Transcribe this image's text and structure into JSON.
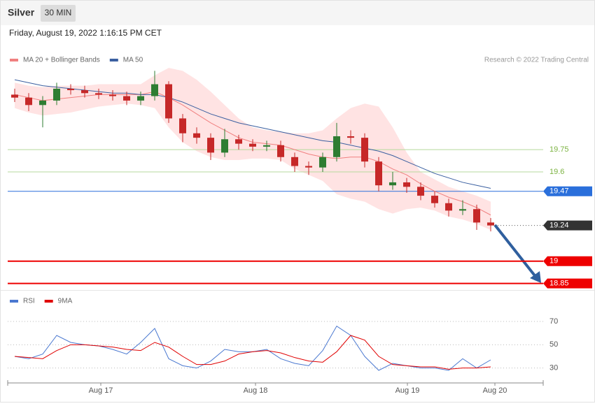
{
  "header": {
    "symbol": "Silver",
    "interval": "30 MIN",
    "datetime": "Friday, August 19, 2022 1:16:15 PM CET",
    "credit": "Research © 2022 Trading Central"
  },
  "chart_data": [
    {
      "type": "candlestick",
      "xlim": [
        0,
        153
      ],
      "ylim": [
        18.82,
        20.31
      ],
      "x": [
        2,
        6,
        10,
        14,
        18,
        22,
        26,
        30,
        34,
        38,
        42,
        46,
        50,
        54,
        58,
        62,
        66,
        70,
        74,
        78,
        82,
        86,
        90,
        94,
        98,
        102,
        106,
        110,
        114,
        118,
        122,
        126,
        130,
        134,
        138
      ],
      "open": [
        20.12,
        20.1,
        20.05,
        20.08,
        20.16,
        20.15,
        20.13,
        20.12,
        20.11,
        20.08,
        20.11,
        20.19,
        19.96,
        19.86,
        19.83,
        19.73,
        19.82,
        19.79,
        19.77,
        19.78,
        19.7,
        19.64,
        19.63,
        19.7,
        19.84,
        19.83,
        19.67,
        19.51,
        19.53,
        19.5,
        19.44,
        19.39,
        19.34,
        19.35,
        19.26
      ],
      "high": [
        20.16,
        20.13,
        20.11,
        20.2,
        20.19,
        20.18,
        20.16,
        20.15,
        20.14,
        20.14,
        20.28,
        20.21,
        19.99,
        19.9,
        19.86,
        19.89,
        19.85,
        19.82,
        19.81,
        19.81,
        19.73,
        19.67,
        19.73,
        19.93,
        19.88,
        19.86,
        19.7,
        19.6,
        19.56,
        19.53,
        19.47,
        19.42,
        19.41,
        19.38,
        19.29
      ],
      "low": [
        20.07,
        20.01,
        19.9,
        20.05,
        20.12,
        20.1,
        20.09,
        20.08,
        20.05,
        20.05,
        20.08,
        19.93,
        19.8,
        19.79,
        19.68,
        19.7,
        19.75,
        19.74,
        19.74,
        19.67,
        19.6,
        19.58,
        19.6,
        19.67,
        19.79,
        19.63,
        19.47,
        19.48,
        19.46,
        19.41,
        19.36,
        19.3,
        19.31,
        19.21,
        19.2
      ],
      "close": [
        20.1,
        20.05,
        20.08,
        20.16,
        20.15,
        20.13,
        20.12,
        20.11,
        20.08,
        20.11,
        20.19,
        19.96,
        19.86,
        19.83,
        19.73,
        19.82,
        19.79,
        19.77,
        19.78,
        19.7,
        19.64,
        19.63,
        19.7,
        19.84,
        19.83,
        19.67,
        19.51,
        19.53,
        19.5,
        19.44,
        19.39,
        19.34,
        19.35,
        19.26,
        19.24
      ],
      "up_color": "#2e7d32",
      "down_color": "#c62828",
      "series": [
        {
          "name": "MA 20 + Bollinger Bands",
          "color": "#f08080",
          "band_color": "#ffe3e3",
          "values": [
            20.12,
            20.1,
            20.08,
            20.09,
            20.1,
            20.11,
            20.12,
            20.12,
            20.12,
            20.12,
            20.14,
            20.1,
            20.05,
            19.99,
            19.93,
            19.88,
            19.83,
            19.8,
            19.79,
            19.78,
            19.75,
            19.72,
            19.7,
            19.69,
            19.7,
            19.7,
            19.67,
            19.62,
            19.58,
            19.52,
            19.47,
            19.43,
            19.4,
            19.36,
            19.31
          ],
          "upper": [
            20.2,
            20.18,
            20.17,
            20.18,
            20.18,
            20.18,
            20.19,
            20.19,
            20.19,
            20.19,
            20.25,
            20.3,
            20.28,
            20.22,
            20.14,
            20.05,
            19.96,
            19.9,
            19.88,
            19.87,
            19.86,
            19.86,
            19.88,
            19.96,
            20.03,
            20.06,
            20.04,
            19.9,
            19.73,
            19.6,
            19.55,
            19.5,
            19.47,
            19.44,
            19.4
          ],
          "lower": [
            20.03,
            20.0,
            19.98,
            19.99,
            20.0,
            20.02,
            20.04,
            20.05,
            20.06,
            20.05,
            20.03,
            19.9,
            19.8,
            19.74,
            19.7,
            19.68,
            19.68,
            19.69,
            19.69,
            19.68,
            19.62,
            19.58,
            19.54,
            19.45,
            19.42,
            19.4,
            19.35,
            19.32,
            19.35,
            19.36,
            19.34,
            19.3,
            19.28,
            19.25,
            19.21
          ]
        },
        {
          "name": "MA 50",
          "color": "#3a5fa0",
          "values": [
            20.22,
            20.2,
            20.18,
            20.17,
            20.16,
            20.15,
            20.14,
            20.13,
            20.13,
            20.12,
            20.12,
            20.1,
            20.07,
            20.03,
            19.99,
            19.96,
            19.93,
            19.91,
            19.89,
            19.87,
            19.85,
            19.83,
            19.81,
            19.8,
            19.78,
            19.76,
            19.74,
            19.71,
            19.67,
            19.63,
            19.59,
            19.56,
            19.53,
            19.51,
            19.49
          ]
        }
      ],
      "levels": [
        {
          "value": 19.75,
          "color": "#b5d99c",
          "text_color": "#7cb342",
          "tag": false,
          "line": "solid"
        },
        {
          "value": 19.6,
          "color": "#b5d99c",
          "text_color": "#7cb342",
          "tag": false,
          "line": "solid"
        },
        {
          "value": 19.47,
          "color": "#2a6fdb",
          "text_color": "#ffffff",
          "tag": true,
          "line": "solid"
        },
        {
          "value": 19.24,
          "color": "#333333",
          "text_color": "#ffffff",
          "tag": true,
          "line": "dotted"
        },
        {
          "value": 19.0,
          "color": "#ee0000",
          "text_color": "#ffffff",
          "tag": true,
          "line": "solid"
        },
        {
          "value": 18.85,
          "color": "#ee0000",
          "text_color": "#ffffff",
          "tag": true,
          "line": "solid"
        }
      ]
    },
    {
      "type": "line",
      "xlim": [
        0,
        153
      ],
      "ylim": [
        19,
        82
      ],
      "x": [
        2,
        6,
        10,
        14,
        18,
        22,
        26,
        30,
        34,
        38,
        42,
        46,
        50,
        54,
        58,
        62,
        66,
        70,
        74,
        78,
        82,
        86,
        90,
        94,
        98,
        102,
        106,
        110,
        114,
        118,
        122,
        126,
        130,
        134,
        138
      ],
      "yticks": [
        30,
        50,
        70
      ],
      "xticks": [
        {
          "value": 26.6,
          "label": "Aug 17"
        },
        {
          "value": 70.8,
          "label": "Aug 18"
        },
        {
          "value": 114.2,
          "label": "Aug 19"
        },
        {
          "value": 139.2,
          "label": "Aug 20"
        }
      ],
      "series": [
        {
          "name": "RSI",
          "color": "#4a78d0",
          "values": [
            40,
            38,
            42,
            58,
            52,
            50,
            49,
            46,
            42,
            52,
            64,
            38,
            32,
            30,
            36,
            46,
            44,
            44,
            46,
            38,
            34,
            32,
            45,
            66,
            58,
            40,
            28,
            34,
            32,
            30,
            30,
            28,
            38,
            30,
            37
          ]
        },
        {
          "name": "9MA",
          "color": "#e00000",
          "values": [
            40,
            39,
            38,
            45,
            50,
            50,
            49,
            48,
            46,
            45,
            52,
            48,
            40,
            33,
            33,
            36,
            42,
            44,
            45,
            43,
            39,
            36,
            35,
            44,
            58,
            54,
            40,
            33,
            32,
            31,
            31,
            29,
            30,
            30,
            31
          ]
        }
      ]
    }
  ]
}
